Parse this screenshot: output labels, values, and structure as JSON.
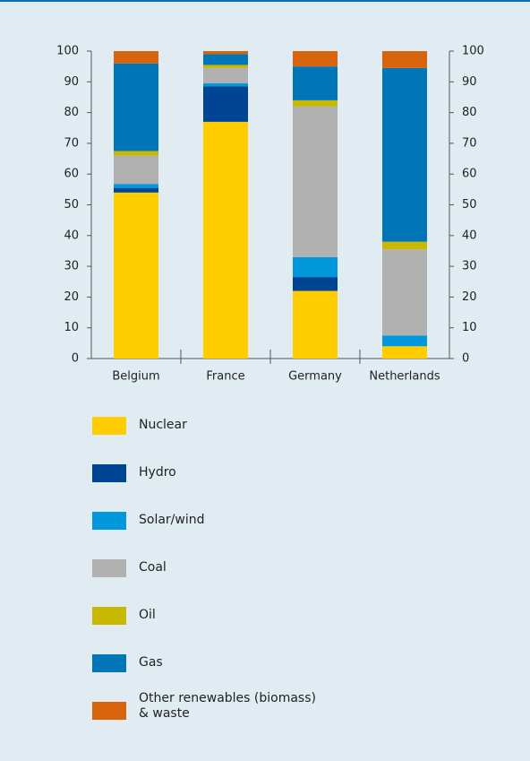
{
  "chart_data": {
    "type": "stacked_bar",
    "categories": [
      "Belgium",
      "France",
      "Germany",
      "Netherlands"
    ],
    "series": [
      {
        "name": "Nuclear",
        "color": "#ffcc00",
        "values": [
          54,
          77,
          22,
          4
        ]
      },
      {
        "name": "Hydro",
        "color": "#004494",
        "values": [
          1.5,
          11.5,
          4.5,
          0
        ]
      },
      {
        "name": "Solar/wind",
        "color": "#0098db",
        "values": [
          1.3,
          1,
          6.5,
          3.5
        ]
      },
      {
        "name": "Coal",
        "color": "#b1b1b1",
        "values": [
          9.2,
          5,
          49,
          28
        ]
      },
      {
        "name": "Oil",
        "color": "#c8b900",
        "values": [
          1.5,
          1,
          2,
          2.5
        ]
      },
      {
        "name": "Gas",
        "color": "#0075b8",
        "values": [
          28.5,
          3.5,
          11,
          56.5
        ]
      },
      {
        "name": "Other renewables (biomass) & waste",
        "color": "#d8650b",
        "values": [
          4,
          1,
          5,
          5.5
        ]
      }
    ],
    "ylim": [
      0,
      100
    ],
    "yticks": [
      0,
      10,
      20,
      30,
      40,
      50,
      60,
      70,
      80,
      90,
      100
    ],
    "y2lim": [
      0,
      100
    ],
    "y2ticks": [
      0,
      10,
      20,
      30,
      40,
      50,
      60,
      70,
      80,
      90,
      100
    ],
    "grid": false
  }
}
